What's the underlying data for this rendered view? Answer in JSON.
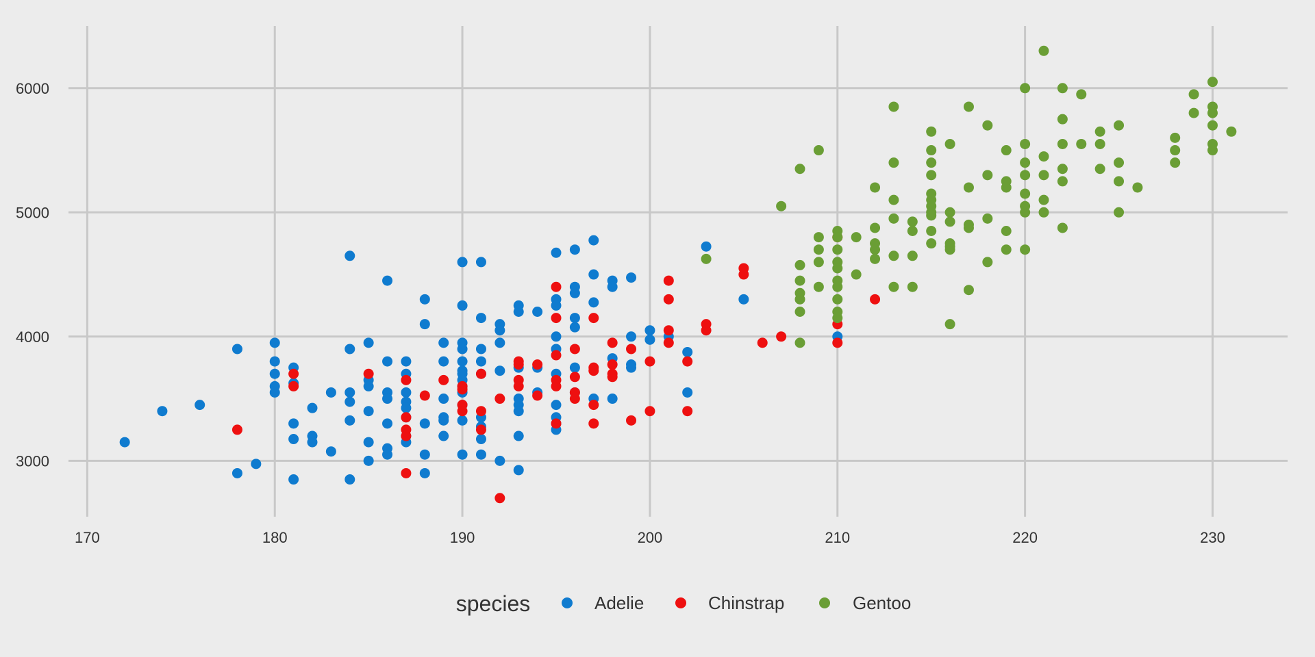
{
  "chart_data": {
    "type": "scatter",
    "title": "",
    "xlabel": "",
    "ylabel": "",
    "xlim": [
      169,
      234
    ],
    "ylim": [
      2550,
      6500
    ],
    "x_ticks": [
      170,
      180,
      190,
      200,
      210,
      220,
      230
    ],
    "y_ticks": [
      3000,
      4000,
      5000,
      6000
    ],
    "x_tick_labels": [
      "170",
      "180",
      "190",
      "200",
      "210",
      "220",
      "230"
    ],
    "y_tick_labels": [
      "3000",
      "4000",
      "5000",
      "6000"
    ],
    "grid": true,
    "background": "#ececec",
    "grid_color": "#c8c8c8",
    "legend": {
      "title": "species",
      "position": "bottom"
    },
    "series": [
      {
        "name": "Adelie",
        "color": "#0f7bcf",
        "points": [
          [
            172,
            3150
          ],
          [
            174,
            3400
          ],
          [
            176,
            3450
          ],
          [
            178,
            3900
          ],
          [
            178,
            2900
          ],
          [
            179,
            2975
          ],
          [
            180,
            3950
          ],
          [
            180,
            3800
          ],
          [
            180,
            3700
          ],
          [
            180,
            3600
          ],
          [
            180,
            3550
          ],
          [
            181,
            3750
          ],
          [
            181,
            3625
          ],
          [
            181,
            3300
          ],
          [
            181,
            3175
          ],
          [
            181,
            2850
          ],
          [
            182,
            3425
          ],
          [
            182,
            3200
          ],
          [
            182,
            3150
          ],
          [
            183,
            3550
          ],
          [
            183,
            3075
          ],
          [
            184,
            4650
          ],
          [
            184,
            3900
          ],
          [
            184,
            3550
          ],
          [
            184,
            3475
          ],
          [
            184,
            3325
          ],
          [
            184,
            2850
          ],
          [
            185,
            3950
          ],
          [
            185,
            3650
          ],
          [
            185,
            3600
          ],
          [
            185,
            3400
          ],
          [
            185,
            3150
          ],
          [
            185,
            3000
          ],
          [
            186,
            4450
          ],
          [
            186,
            3800
          ],
          [
            186,
            3550
          ],
          [
            186,
            3500
          ],
          [
            186,
            3300
          ],
          [
            186,
            3100
          ],
          [
            186,
            3050
          ],
          [
            187,
            3800
          ],
          [
            187,
            3700
          ],
          [
            187,
            3550
          ],
          [
            187,
            3475
          ],
          [
            187,
            3425
          ],
          [
            187,
            3350
          ],
          [
            187,
            3200
          ],
          [
            187,
            3150
          ],
          [
            188,
            4300
          ],
          [
            188,
            4100
          ],
          [
            188,
            3300
          ],
          [
            188,
            3050
          ],
          [
            188,
            2900
          ],
          [
            189,
            3950
          ],
          [
            189,
            3800
          ],
          [
            189,
            3500
          ],
          [
            189,
            3350
          ],
          [
            189,
            3325
          ],
          [
            189,
            3200
          ],
          [
            190,
            4600
          ],
          [
            190,
            4250
          ],
          [
            190,
            3950
          ],
          [
            190,
            3900
          ],
          [
            190,
            3800
          ],
          [
            190,
            3725
          ],
          [
            190,
            3700
          ],
          [
            190,
            3650
          ],
          [
            190,
            3600
          ],
          [
            190,
            3550
          ],
          [
            190,
            3450
          ],
          [
            190,
            3325
          ],
          [
            190,
            3050
          ],
          [
            191,
            4600
          ],
          [
            191,
            4150
          ],
          [
            191,
            3900
          ],
          [
            191,
            3800
          ],
          [
            191,
            3700
          ],
          [
            191,
            3350
          ],
          [
            191,
            3275
          ],
          [
            191,
            3175
          ],
          [
            191,
            3050
          ],
          [
            192,
            4100
          ],
          [
            192,
            4050
          ],
          [
            192,
            3950
          ],
          [
            192,
            3725
          ],
          [
            192,
            3000
          ],
          [
            193,
            4250
          ],
          [
            193,
            4200
          ],
          [
            193,
            3750
          ],
          [
            193,
            3500
          ],
          [
            193,
            3450
          ],
          [
            193,
            3400
          ],
          [
            193,
            3200
          ],
          [
            193,
            2925
          ],
          [
            194,
            4200
          ],
          [
            194,
            3750
          ],
          [
            194,
            3550
          ],
          [
            195,
            4675
          ],
          [
            195,
            4300
          ],
          [
            195,
            4250
          ],
          [
            195,
            4000
          ],
          [
            195,
            3900
          ],
          [
            195,
            3700
          ],
          [
            195,
            3450
          ],
          [
            195,
            3350
          ],
          [
            195,
            3300
          ],
          [
            195,
            3250
          ],
          [
            196,
            4700
          ],
          [
            196,
            4400
          ],
          [
            196,
            4350
          ],
          [
            196,
            4150
          ],
          [
            196,
            4075
          ],
          [
            196,
            3750
          ],
          [
            196,
            3550
          ],
          [
            197,
            4775
          ],
          [
            197,
            4500
          ],
          [
            197,
            4275
          ],
          [
            197,
            3500
          ],
          [
            198,
            4450
          ],
          [
            198,
            4400
          ],
          [
            198,
            3825
          ],
          [
            198,
            3500
          ],
          [
            199,
            4475
          ],
          [
            199,
            4000
          ],
          [
            199,
            3775
          ],
          [
            199,
            3750
          ],
          [
            200,
            4050
          ],
          [
            200,
            3975
          ],
          [
            201,
            4000
          ],
          [
            202,
            3875
          ],
          [
            202,
            3550
          ],
          [
            203,
            4725
          ],
          [
            205,
            4300
          ],
          [
            210,
            4000
          ]
        ]
      },
      {
        "name": "Chinstrap",
        "color": "#ee1010",
        "points": [
          [
            178,
            3250
          ],
          [
            181,
            3700
          ],
          [
            181,
            3600
          ],
          [
            185,
            3700
          ],
          [
            187,
            3650
          ],
          [
            187,
            3350
          ],
          [
            187,
            3250
          ],
          [
            187,
            3200
          ],
          [
            187,
            2900
          ],
          [
            188,
            3525
          ],
          [
            189,
            3650
          ],
          [
            190,
            3600
          ],
          [
            190,
            3575
          ],
          [
            190,
            3450
          ],
          [
            190,
            3400
          ],
          [
            191,
            3700
          ],
          [
            191,
            3400
          ],
          [
            191,
            3250
          ],
          [
            192,
            3500
          ],
          [
            192,
            2700
          ],
          [
            193,
            3800
          ],
          [
            193,
            3775
          ],
          [
            193,
            3650
          ],
          [
            193,
            3600
          ],
          [
            194,
            3775
          ],
          [
            194,
            3525
          ],
          [
            195,
            4400
          ],
          [
            195,
            4150
          ],
          [
            195,
            3850
          ],
          [
            195,
            3650
          ],
          [
            195,
            3600
          ],
          [
            195,
            3300
          ],
          [
            196,
            3900
          ],
          [
            196,
            3675
          ],
          [
            196,
            3550
          ],
          [
            196,
            3500
          ],
          [
            197,
            4150
          ],
          [
            197,
            3750
          ],
          [
            197,
            3725
          ],
          [
            197,
            3450
          ],
          [
            197,
            3300
          ],
          [
            198,
            3950
          ],
          [
            198,
            3775
          ],
          [
            198,
            3700
          ],
          [
            198,
            3675
          ],
          [
            199,
            3900
          ],
          [
            199,
            3325
          ],
          [
            200,
            3800
          ],
          [
            200,
            3400
          ],
          [
            201,
            4450
          ],
          [
            201,
            4300
          ],
          [
            201,
            4050
          ],
          [
            201,
            3950
          ],
          [
            202,
            3800
          ],
          [
            202,
            3400
          ],
          [
            203,
            4100
          ],
          [
            203,
            4050
          ],
          [
            205,
            4550
          ],
          [
            205,
            4500
          ],
          [
            206,
            3950
          ],
          [
            207,
            4000
          ],
          [
            210,
            4800
          ],
          [
            210,
            4100
          ],
          [
            210,
            3950
          ],
          [
            212,
            4300
          ]
        ]
      },
      {
        "name": "Gentoo",
        "color": "#6a9e35",
        "points": [
          [
            203,
            4625
          ],
          [
            207,
            5050
          ],
          [
            208,
            5350
          ],
          [
            208,
            4575
          ],
          [
            208,
            4450
          ],
          [
            208,
            4350
          ],
          [
            208,
            4300
          ],
          [
            208,
            4200
          ],
          [
            208,
            3950
          ],
          [
            209,
            5500
          ],
          [
            209,
            4800
          ],
          [
            209,
            4700
          ],
          [
            209,
            4600
          ],
          [
            209,
            4400
          ],
          [
            210,
            4850
          ],
          [
            210,
            4800
          ],
          [
            210,
            4700
          ],
          [
            210,
            4600
          ],
          [
            210,
            4550
          ],
          [
            210,
            4450
          ],
          [
            210,
            4400
          ],
          [
            210,
            4300
          ],
          [
            210,
            4200
          ],
          [
            210,
            4150
          ],
          [
            211,
            4800
          ],
          [
            211,
            4500
          ],
          [
            212,
            5200
          ],
          [
            212,
            4875
          ],
          [
            212,
            4750
          ],
          [
            212,
            4700
          ],
          [
            212,
            4625
          ],
          [
            213,
            5850
          ],
          [
            213,
            5400
          ],
          [
            213,
            5100
          ],
          [
            213,
            4950
          ],
          [
            213,
            4650
          ],
          [
            213,
            4400
          ],
          [
            214,
            4925
          ],
          [
            214,
            4850
          ],
          [
            214,
            4650
          ],
          [
            214,
            4400
          ],
          [
            215,
            5650
          ],
          [
            215,
            5500
          ],
          [
            215,
            5400
          ],
          [
            215,
            5300
          ],
          [
            215,
            5150
          ],
          [
            215,
            5100
          ],
          [
            215,
            5050
          ],
          [
            215,
            5000
          ],
          [
            215,
            4975
          ],
          [
            215,
            4850
          ],
          [
            215,
            4750
          ],
          [
            216,
            5550
          ],
          [
            216,
            5000
          ],
          [
            216,
            4925
          ],
          [
            216,
            4750
          ],
          [
            216,
            4725
          ],
          [
            216,
            4700
          ],
          [
            216,
            4100
          ],
          [
            217,
            5850
          ],
          [
            217,
            5200
          ],
          [
            217,
            4900
          ],
          [
            217,
            4875
          ],
          [
            217,
            4375
          ],
          [
            218,
            5700
          ],
          [
            218,
            5300
          ],
          [
            218,
            4950
          ],
          [
            218,
            4600
          ],
          [
            219,
            5500
          ],
          [
            219,
            5250
          ],
          [
            219,
            5200
          ],
          [
            219,
            4850
          ],
          [
            219,
            4700
          ],
          [
            220,
            6000
          ],
          [
            220,
            5550
          ],
          [
            220,
            5400
          ],
          [
            220,
            5300
          ],
          [
            220,
            5150
          ],
          [
            220,
            5050
          ],
          [
            220,
            5000
          ],
          [
            220,
            4700
          ],
          [
            221,
            6300
          ],
          [
            221,
            5450
          ],
          [
            221,
            5300
          ],
          [
            221,
            5100
          ],
          [
            221,
            5000
          ],
          [
            222,
            6000
          ],
          [
            222,
            5750
          ],
          [
            222,
            5550
          ],
          [
            222,
            5350
          ],
          [
            222,
            5250
          ],
          [
            222,
            4875
          ],
          [
            223,
            5950
          ],
          [
            223,
            5550
          ],
          [
            224,
            5650
          ],
          [
            224,
            5550
          ],
          [
            224,
            5350
          ],
          [
            225,
            5700
          ],
          [
            225,
            5400
          ],
          [
            225,
            5250
          ],
          [
            225,
            5000
          ],
          [
            226,
            5200
          ],
          [
            228,
            5600
          ],
          [
            228,
            5500
          ],
          [
            228,
            5400
          ],
          [
            229,
            5950
          ],
          [
            229,
            5800
          ],
          [
            230,
            6050
          ],
          [
            230,
            5850
          ],
          [
            230,
            5800
          ],
          [
            230,
            5700
          ],
          [
            230,
            5550
          ],
          [
            230,
            5500
          ],
          [
            231,
            5650
          ]
        ]
      }
    ]
  }
}
